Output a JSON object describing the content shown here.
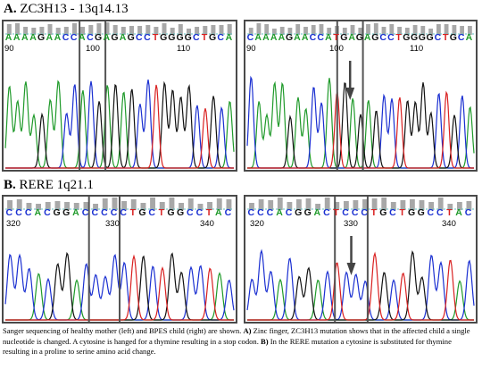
{
  "sections": [
    {
      "label": "A.",
      "title": "ZC3H13 - 13q14.13",
      "panels": [
        {
          "side": "left",
          "sequence": "AAAAGAACCACGAGAGCCTGGGGCTGCA",
          "positions": [
            "90",
            "100",
            "110"
          ],
          "highlight": [
            0.33,
            0.44
          ],
          "arrow": false
        },
        {
          "side": "right",
          "sequence": "CAAAAGAACCATGAGAGCCTGGGGCTGCA",
          "positions": [
            "90",
            "100",
            "110"
          ],
          "highlight": [
            0.4,
            0.51
          ],
          "arrow": true
        }
      ]
    },
    {
      "label": "B.",
      "title": "RERE 1q21.1",
      "panels": [
        {
          "side": "left",
          "sequence": "CCCACGGACCCCCTGCTGGCCTAC",
          "positions": [
            "320",
            "330",
            "340"
          ],
          "highlight": [
            0.37,
            0.5
          ],
          "arrow": false
        },
        {
          "side": "right",
          "sequence": "CCCACGGACTCCCTGCTGGCCTAC",
          "positions": [
            "320",
            "330",
            "340"
          ],
          "highlight": [
            0.39,
            0.53
          ],
          "arrow": true
        }
      ]
    }
  ],
  "caption": {
    "part1": "Sanger sequencing of healthy mother (left) and BPES child (right) are shown. ",
    "a_label": "A)",
    "part2": " Zinc finger, ZC3H13 mutation shows that in the affected child a single nucleotide is changed. A cytosine is hanged for a thymine resulting in a stop codon. ",
    "b_label": "B)",
    "part3": " In the RERE mutation a cytosine is substituted for thymine resulting in a proline to serine amino acid change."
  },
  "base_colors": {
    "A": "#1f9a2a",
    "C": "#1a2fd1",
    "G": "#111111",
    "T": "#d92020"
  }
}
